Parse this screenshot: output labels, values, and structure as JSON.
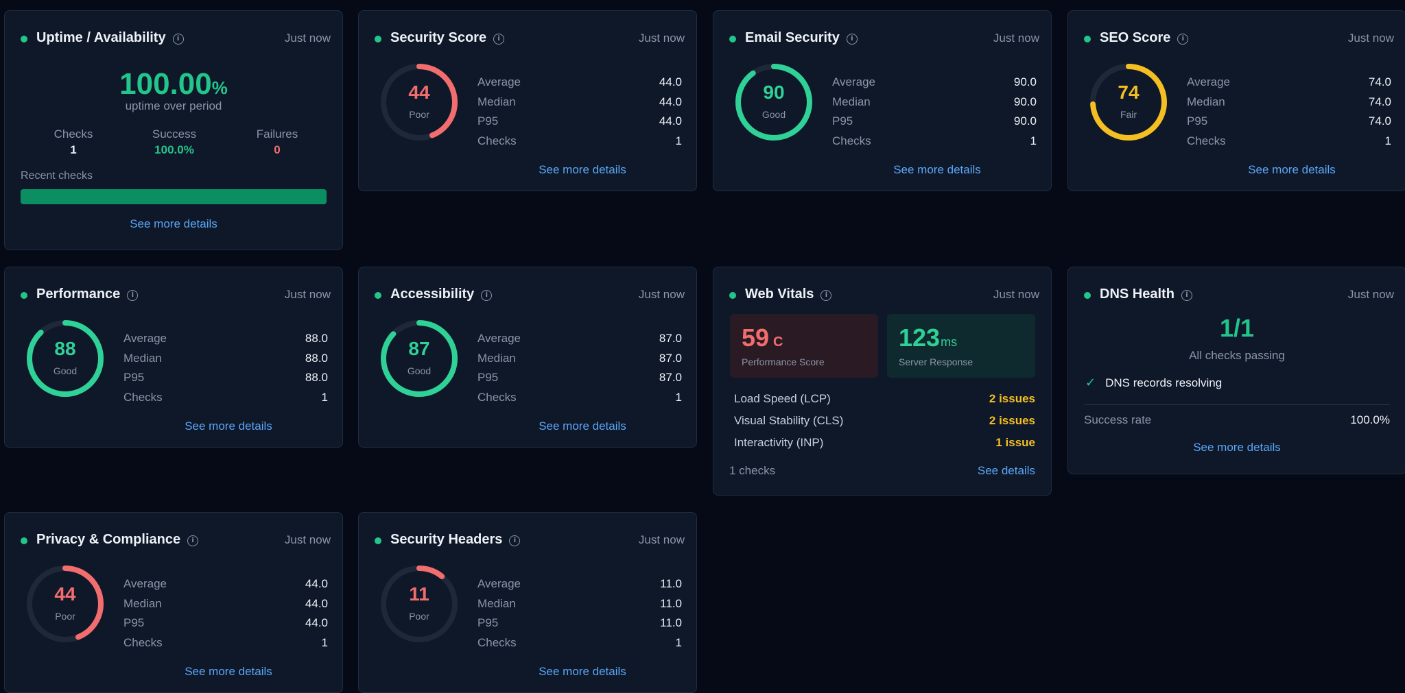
{
  "uptime": {
    "title": "Uptime / Availability",
    "time": "Just now",
    "percent": "100.00",
    "percent_unit": "%",
    "subtitle": "uptime over period",
    "checks_label": "Checks",
    "checks_value": "1",
    "success_label": "Success",
    "success_value": "100.0%",
    "failures_label": "Failures",
    "failures_value": "0",
    "recent_label": "Recent checks",
    "recent_success_fraction": 1.0,
    "link": "See more details"
  },
  "gauge_cards": [
    {
      "id": "security-score",
      "title": "Security Score",
      "time": "Just now",
      "score": "44",
      "rating": "Poor",
      "fraction": 0.44,
      "color": "#f26d6d",
      "average": "44.0",
      "median": "44.0",
      "p95": "44.0",
      "checks": "1",
      "link": "See more details"
    },
    {
      "id": "email-security",
      "title": "Email Security",
      "time": "Just now",
      "score": "90",
      "rating": "Good",
      "fraction": 0.9,
      "color": "#2fd197",
      "average": "90.0",
      "median": "90.0",
      "p95": "90.0",
      "checks": "1",
      "link": "See more details"
    },
    {
      "id": "seo-score",
      "title": "SEO Score",
      "time": "Just now",
      "score": "74",
      "rating": "Fair",
      "fraction": 0.74,
      "color": "#f5bf22",
      "average": "74.0",
      "median": "74.0",
      "p95": "74.0",
      "checks": "1",
      "link": "See more details"
    },
    {
      "id": "performance",
      "title": "Performance",
      "time": "Just now",
      "score": "88",
      "rating": "Good",
      "fraction": 0.88,
      "color": "#2fd197",
      "average": "88.0",
      "median": "88.0",
      "p95": "88.0",
      "checks": "1",
      "link": "See more details"
    },
    {
      "id": "accessibility",
      "title": "Accessibility",
      "time": "Just now",
      "score": "87",
      "rating": "Good",
      "fraction": 0.87,
      "color": "#2fd197",
      "average": "87.0",
      "median": "87.0",
      "p95": "87.0",
      "checks": "1",
      "link": "See more details"
    },
    {
      "id": "privacy-compliance",
      "title": "Privacy & Compliance",
      "time": "Just now",
      "score": "44",
      "rating": "Poor",
      "fraction": 0.44,
      "color": "#f26d6d",
      "average": "44.0",
      "median": "44.0",
      "p95": "44.0",
      "checks": "1",
      "link": "See more details"
    },
    {
      "id": "security-headers",
      "title": "Security Headers",
      "time": "Just now",
      "score": "11",
      "rating": "Poor",
      "fraction": 0.11,
      "color": "#f26d6d",
      "average": "11.0",
      "median": "11.0",
      "p95": "11.0",
      "checks": "1",
      "link": "See more details"
    }
  ],
  "stat_labels": {
    "average": "Average",
    "median": "Median",
    "p95": "P95",
    "checks": "Checks"
  },
  "web_vitals": {
    "title": "Web Vitals",
    "time": "Just now",
    "perf_score": "59",
    "perf_grade": "C",
    "perf_label": "Performance Score",
    "server_value": "123",
    "server_unit": "ms",
    "server_label": "Server Response",
    "rows": [
      {
        "name": "Load Speed (LCP)",
        "issues": "2 issues"
      },
      {
        "name": "Visual Stability (CLS)",
        "issues": "2 issues"
      },
      {
        "name": "Interactivity (INP)",
        "issues": "1 issue"
      }
    ],
    "footer_checks": "1 checks",
    "footer_link": "See details"
  },
  "dns": {
    "title": "DNS Health",
    "time": "Just now",
    "ratio": "1/1",
    "subtitle": "All checks passing",
    "check_text": "DNS records resolving",
    "success_label": "Success rate",
    "success_value": "100.0%",
    "link": "See more details"
  },
  "colors": {
    "good": "#2fd197",
    "fair": "#f5bf22",
    "poor": "#f26d6d",
    "link": "#5aa6f7",
    "track": "#1e2838"
  }
}
